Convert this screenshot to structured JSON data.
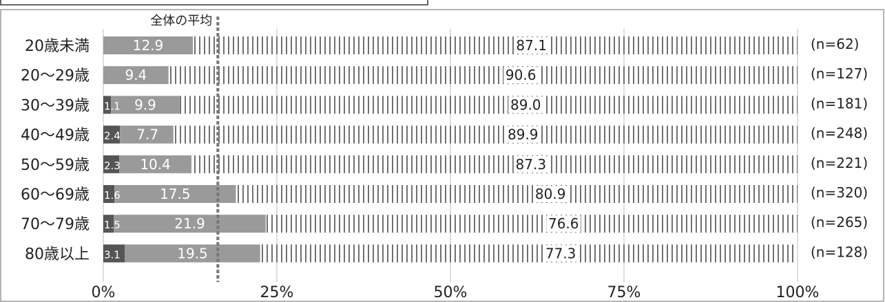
{
  "chart_data": {
    "type": "bar",
    "stacked": true,
    "orientation": "horizontal",
    "average_marker": {
      "label": "全体の平均",
      "value": 16.5
    },
    "categories": [
      "20歳未満",
      "20～29歳",
      "30～39歳",
      "40～49歳",
      "50～59歳",
      "60～69歳",
      "70～79歳",
      "80歳以上"
    ],
    "sample_sizes": [
      "(n=62)",
      "(n=127)",
      "(n=181)",
      "(n=248)",
      "(n=221)",
      "(n=320)",
      "(n=265)",
      "(n=128)"
    ],
    "series": [
      {
        "values": [
          0,
          0,
          1.1,
          2.4,
          2.3,
          1.6,
          1.5,
          3.1
        ],
        "labels": [
          "",
          "",
          "1.1",
          "2.4",
          "2.3",
          "1.6",
          "1.5",
          "3.1"
        ],
        "color": "#555555"
      },
      {
        "values": [
          12.9,
          9.4,
          9.9,
          7.7,
          10.4,
          17.5,
          21.9,
          19.5
        ],
        "labels": [
          "12.9",
          "9.4",
          "9.9",
          "7.7",
          "10.4",
          "17.5",
          "21.9",
          "19.5"
        ],
        "color": "#9a9a9a"
      },
      {
        "values": [
          87.1,
          90.6,
          89.0,
          89.9,
          87.3,
          80.9,
          76.6,
          77.3
        ],
        "labels": [
          "87.1",
          "90.6",
          "89.0",
          "89.9",
          "87.3",
          "80.9",
          "76.6",
          "77.3"
        ],
        "color": "#ffffff",
        "pattern": "vertical-stripes"
      }
    ],
    "xlim": [
      0,
      100
    ],
    "x_ticks": [
      "0%",
      "25%",
      "50%",
      "75%",
      "100%"
    ],
    "grid": true,
    "legend": false
  },
  "colors": {
    "stripe": "#707070",
    "grid": "#bdbdbd",
    "average_line": "#777777",
    "frame": "#555555"
  }
}
